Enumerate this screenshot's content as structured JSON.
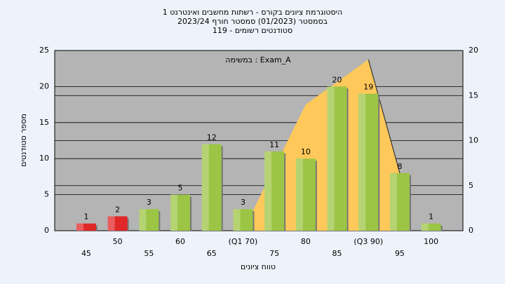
{
  "chart_data": {
    "type": "bar",
    "title": "היסטוגרמת ציונים בקורס - רשתות מחשבים ואינטרנט 1",
    "subtitle": "בסמסטר (01/2023) סמסטר חורף 2023/24",
    "subtitle2": "סטודנטים רשומים - 119",
    "annotation": "במשימה : Exam_A",
    "xlabel": "טווח ציונים",
    "ylabel": "מספר סטודנטים",
    "categories": [
      "45",
      "50",
      "55",
      "60",
      "65",
      "(Q1 70)",
      "75",
      "80",
      "85",
      "(Q3 90)",
      "95",
      "100"
    ],
    "series": [
      {
        "color": "#9cc545",
        "colors": [
          "#e02828",
          "#e02828",
          "#9cc545",
          "#9cc545",
          "#9cc545",
          "#9cc545",
          "#9cc545",
          "#9cc545",
          "#9cc545",
          "#9cc545",
          "#9cc545",
          "#9cc545"
        ],
        "values": [
          1,
          2,
          3,
          5,
          12,
          3,
          11,
          10,
          20,
          19,
          8,
          1
        ]
      },
      {
        "type": "area",
        "axis": "y2",
        "color": "#ffc85a",
        "values": [
          null,
          null,
          null,
          null,
          null,
          0,
          7,
          14,
          16.5,
          19,
          6.4,
          null
        ]
      }
    ],
    "ylim": [
      0,
      25
    ],
    "yticks": [
      0,
      5,
      10,
      15,
      20,
      25
    ],
    "y2lim": [
      0,
      20
    ],
    "y2ticks": [
      0,
      5,
      10,
      15,
      20
    ],
    "grid": true
  }
}
